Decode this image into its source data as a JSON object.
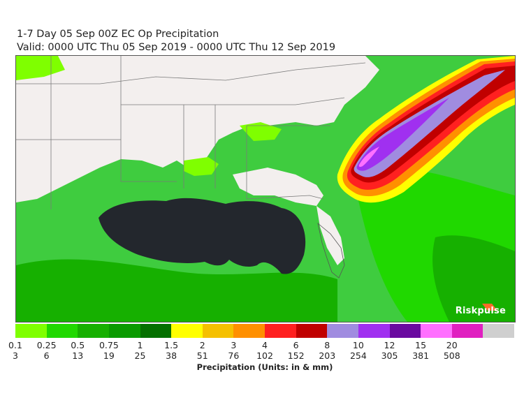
{
  "title": {
    "line1": "1-7 Day 05 Sep 00Z EC Op Precipitation",
    "line2": "Valid: 0000 UTC Thu 05 Sep 2019 - 0000 UTC Thu 12 Sep 2019"
  },
  "brand": "Riskpulse",
  "legend": {
    "units_label": "Precipitation (Units: in & mm)",
    "bins": [
      {
        "color": "#7fff00",
        "inches": "0.1",
        "mm": "3"
      },
      {
        "color": "#20d800",
        "inches": "0.25",
        "mm": "6"
      },
      {
        "color": "#16b000",
        "inches": "0.5",
        "mm": "13"
      },
      {
        "color": "#0a9a00",
        "inches": "0.75",
        "mm": "19"
      },
      {
        "color": "#057000",
        "inches": "1",
        "mm": "25"
      },
      {
        "color": "#ffff00",
        "inches": "1.5",
        "mm": "38"
      },
      {
        "color": "#f5c000",
        "inches": "2",
        "mm": "51"
      },
      {
        "color": "#ff9000",
        "inches": "3",
        "mm": "76"
      },
      {
        "color": "#ff2020",
        "inches": "4",
        "mm": "102"
      },
      {
        "color": "#c00000",
        "inches": "6",
        "mm": "152"
      },
      {
        "color": "#a08ce0",
        "inches": "8",
        "mm": "203"
      },
      {
        "color": "#a030f0",
        "inches": "10",
        "mm": "254"
      },
      {
        "color": "#6a0aa0",
        "inches": "12",
        "mm": "305"
      },
      {
        "color": "#ff70ff",
        "inches": "15",
        "mm": "381"
      },
      {
        "color": "#e020c0",
        "inches": "20",
        "mm": "508"
      },
      {
        "color": "#cfcfcf",
        "inches": "",
        "mm": ""
      }
    ]
  },
  "colors": {
    "land_dry": "#f3efee",
    "no_data_ocean": "#23272d",
    "boundaries": "#7a7a7a"
  }
}
